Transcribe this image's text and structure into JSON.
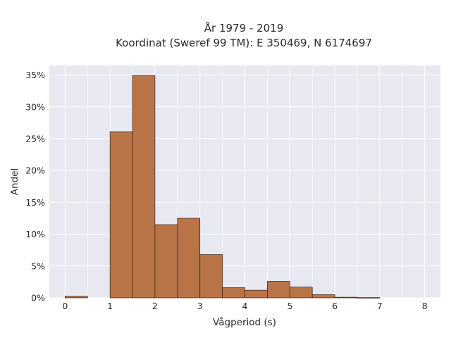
{
  "chart_data": {
    "type": "bar",
    "title_lines": [
      "År 1979 - 2019",
      "Koordinat (Sweref 99 TM): E 350469, N 6174697"
    ],
    "xlabel": "Vågperiod (s)",
    "ylabel": "Andel",
    "x_ticks": [
      "0",
      "1",
      "2",
      "3",
      "4",
      "5",
      "6",
      "7",
      "8"
    ],
    "y_ticks": [
      "0%",
      "5%",
      "10%",
      "15%",
      "20%",
      "25%",
      "30%",
      "35%"
    ],
    "xlim": [
      -0.35,
      8.35
    ],
    "ylim": [
      0,
      36.5
    ],
    "bin_width": 0.5,
    "bins": [
      {
        "x0": 0.0,
        "value": 0.25
      },
      {
        "x0": 0.5,
        "value": 0.0
      },
      {
        "x0": 1.0,
        "value": 26.1
      },
      {
        "x0": 1.5,
        "value": 34.9
      },
      {
        "x0": 2.0,
        "value": 11.5
      },
      {
        "x0": 2.5,
        "value": 12.5
      },
      {
        "x0": 3.0,
        "value": 6.8
      },
      {
        "x0": 3.5,
        "value": 1.6
      },
      {
        "x0": 4.0,
        "value": 1.2
      },
      {
        "x0": 4.5,
        "value": 2.6
      },
      {
        "x0": 5.0,
        "value": 1.7
      },
      {
        "x0": 5.5,
        "value": 0.5
      },
      {
        "x0": 6.0,
        "value": 0.1
      },
      {
        "x0": 6.5,
        "value": 0.05
      }
    ],
    "grid": true,
    "colors": {
      "bar_fill": "#b87347",
      "bar_stroke": "#3a2418",
      "plot_bg": "#e8e8f0",
      "grid": "#ffffff"
    }
  }
}
